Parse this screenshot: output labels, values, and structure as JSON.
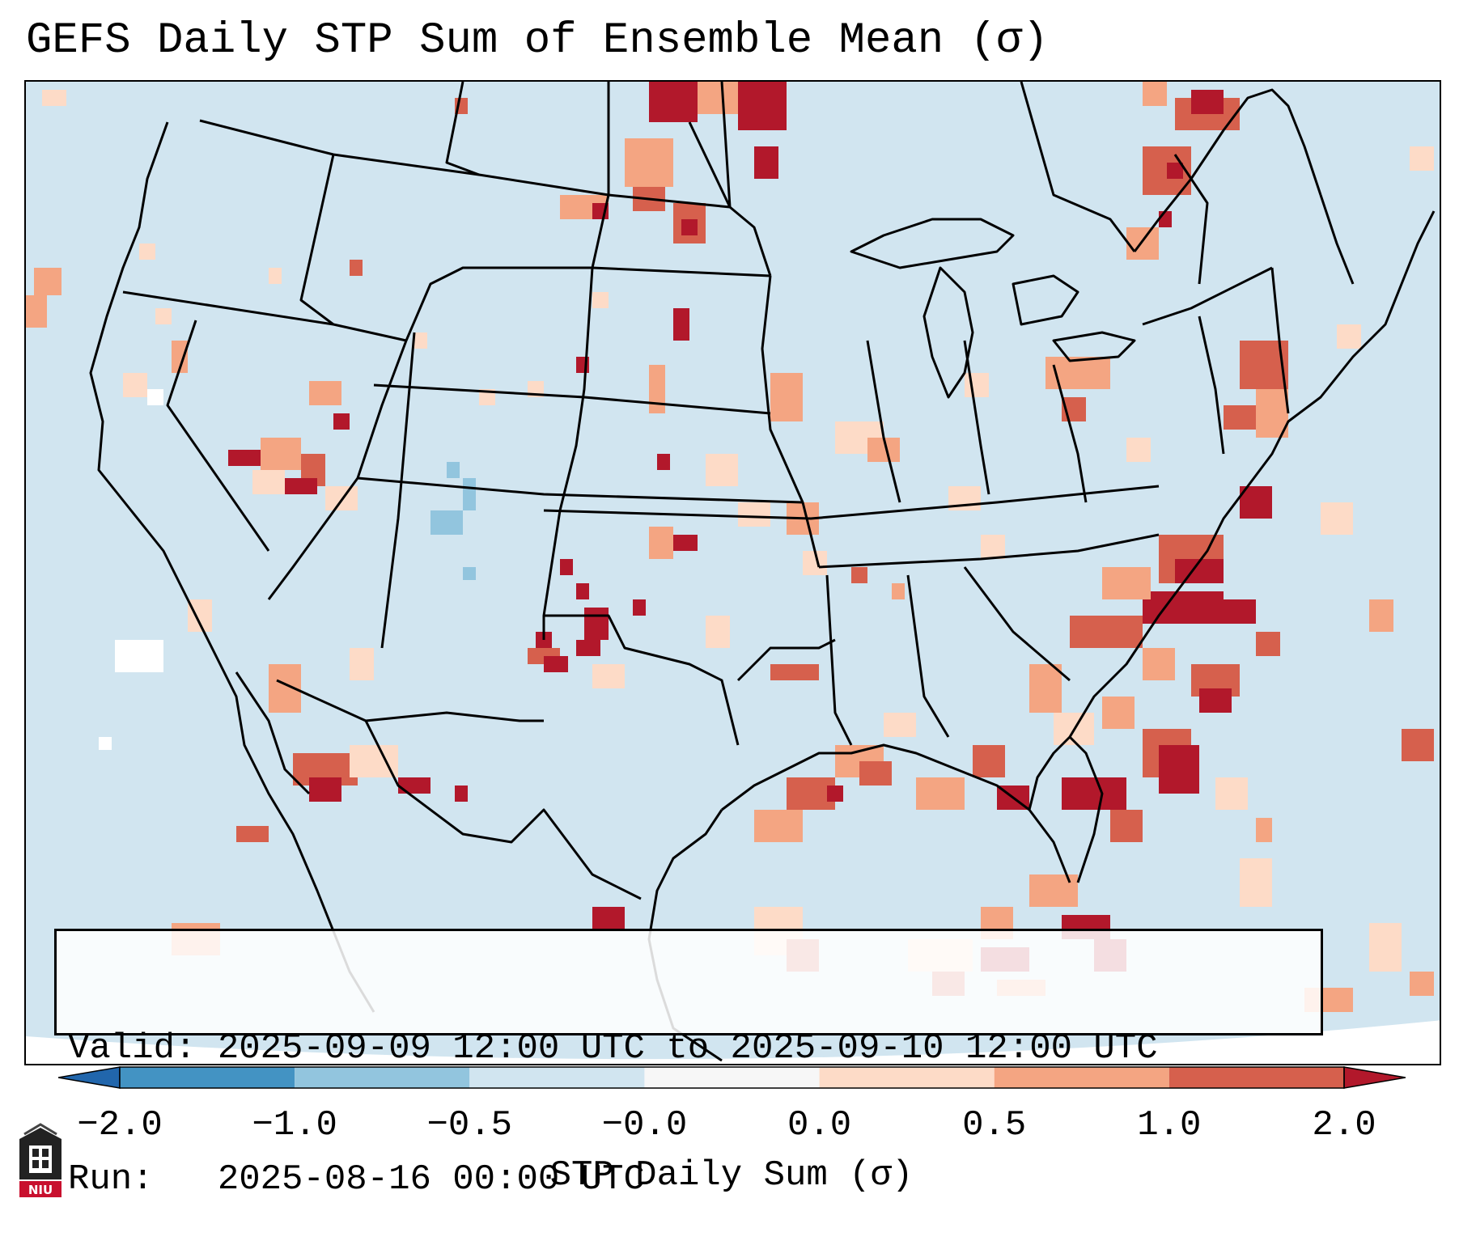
{
  "title": "GEFS Daily STP Sum of Ensemble Mean (σ)",
  "info": {
    "valid_line": "Valid: 2025-09-09 12:00 UTC to 2025-09-10 12:00 UTC",
    "run_line": "Run:   2025-08-16 00:00 UTC"
  },
  "colorbar": {
    "label": "STP Daily Sum (σ)",
    "ticks": [
      "−2.0",
      "−1.0",
      "−0.5",
      "−0.0",
      "0.0",
      "0.5",
      "1.0",
      "2.0"
    ],
    "colors": [
      "#4393c3",
      "#92c5de",
      "#d1e5f0",
      "#f7f7f7",
      "#fddbc7",
      "#f4a582",
      "#d6604d"
    ],
    "extend_low_color": "#2166ac",
    "extend_high_color": "#b2182b"
  },
  "logo": {
    "text": "NIU",
    "icon": "university-logo-icon"
  }
}
